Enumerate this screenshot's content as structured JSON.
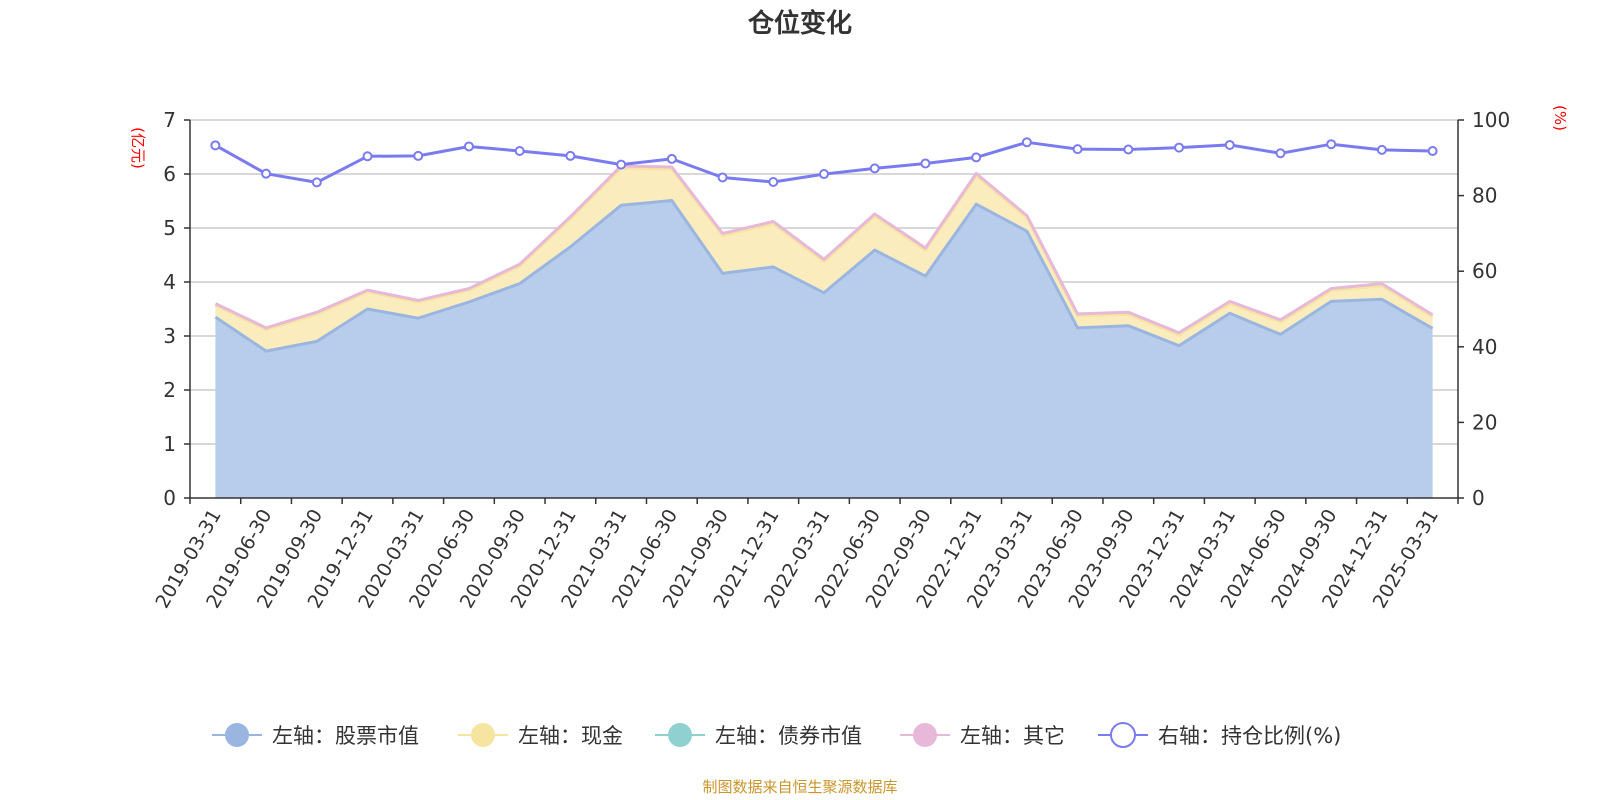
{
  "chart_data": {
    "type": "area",
    "title": "仓位变化",
    "source": "制图数据来自恒生聚源数据库",
    "left_axis": {
      "unit": "(亿元)",
      "min": 0,
      "max": 7,
      "ticks": [
        "0",
        "1",
        "2",
        "3",
        "4",
        "5",
        "6",
        "7"
      ]
    },
    "right_axis": {
      "unit": "(%)",
      "min": 0,
      "max": 100,
      "ticks": [
        "0",
        "20",
        "40",
        "60",
        "80",
        "100"
      ]
    },
    "grid": true,
    "legend_position": "bottom",
    "categories": [
      "2019-03-31",
      "2019-06-30",
      "2019-09-30",
      "2019-12-31",
      "2020-03-31",
      "2020-06-30",
      "2020-09-30",
      "2020-12-31",
      "2021-03-31",
      "2021-06-30",
      "2021-09-30",
      "2021-12-31",
      "2022-03-31",
      "2022-06-30",
      "2022-09-30",
      "2022-12-31",
      "2023-03-31",
      "2023-06-30",
      "2023-09-30",
      "2023-12-31",
      "2024-03-31",
      "2024-06-30",
      "2024-09-30",
      "2024-12-31",
      "2025-03-31"
    ],
    "series": [
      {
        "name": "左轴：股票市值",
        "axis": "left",
        "stack": true,
        "color": "#9ab6e0",
        "fill": "#b8cdeb",
        "values": [
          3.35,
          2.72,
          2.9,
          3.5,
          3.33,
          3.63,
          3.97,
          4.65,
          5.42,
          5.51,
          4.16,
          4.28,
          3.8,
          4.59,
          4.11,
          5.44,
          4.94,
          3.15,
          3.19,
          2.82,
          3.42,
          3.03,
          3.64,
          3.68,
          3.14
        ]
      },
      {
        "name": "左轴：现金",
        "axis": "left",
        "stack": true,
        "color": "#f5e5a0",
        "fill": "#faecbd",
        "values": [
          0.22,
          0.4,
          0.5,
          0.32,
          0.3,
          0.22,
          0.33,
          0.52,
          0.69,
          0.58,
          0.7,
          0.8,
          0.58,
          0.63,
          0.48,
          0.53,
          0.25,
          0.22,
          0.21,
          0.2,
          0.18,
          0.23,
          0.2,
          0.25,
          0.21
        ]
      },
      {
        "name": "左轴：债券市值",
        "axis": "left",
        "stack": true,
        "color": "#8fd0d0",
        "fill": "#a8dada",
        "values": [
          0,
          0,
          0,
          0,
          0,
          0,
          0,
          0,
          0,
          0,
          0,
          0,
          0,
          0,
          0,
          0,
          0,
          0,
          0,
          0,
          0,
          0,
          0,
          0,
          0
        ]
      },
      {
        "name": "左轴：其它",
        "axis": "left",
        "stack": true,
        "color": "#e8b8d8",
        "fill": "#f2d0e6",
        "values": [
          0.03,
          0.03,
          0.04,
          0.03,
          0.03,
          0.03,
          0.03,
          0.04,
          0.04,
          0.04,
          0.04,
          0.04,
          0.04,
          0.04,
          0.04,
          0.04,
          0.04,
          0.04,
          0.04,
          0.04,
          0.04,
          0.04,
          0.04,
          0.04,
          0.04
        ]
      },
      {
        "name": "右轴：持仓比例(%)",
        "axis": "right",
        "type": "line",
        "color": "#7b7bf0",
        "values": [
          93.3,
          85.8,
          83.5,
          90.4,
          90.5,
          93.0,
          91.8,
          90.5,
          88.2,
          89.7,
          84.8,
          83.6,
          85.7,
          87.2,
          88.5,
          90.1,
          94.1,
          92.3,
          92.2,
          92.7,
          93.4,
          91.2,
          93.6,
          92.1,
          91.8
        ]
      }
    ]
  }
}
